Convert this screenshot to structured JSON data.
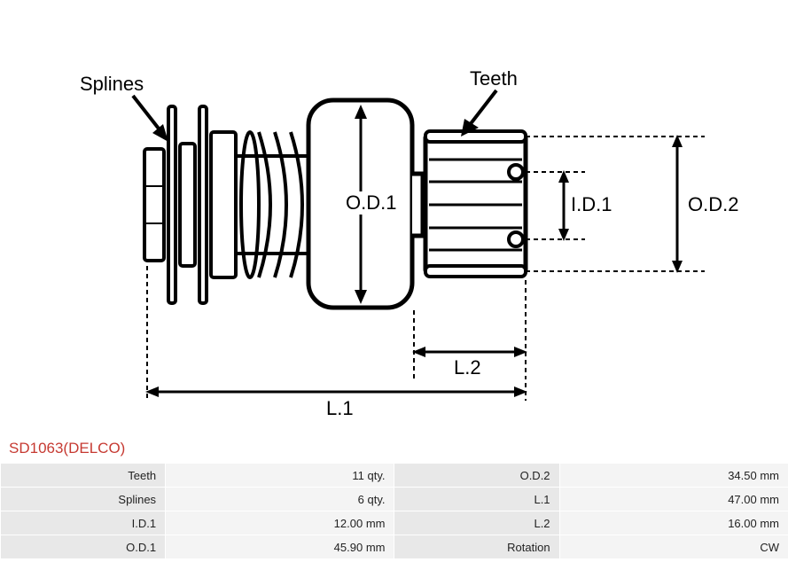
{
  "diagram": {
    "labels": {
      "splines": "Splines",
      "teeth": "Teeth",
      "od1": "O.D.1",
      "od2": "O.D.2",
      "id1": "I.D.1",
      "l1": "L.1",
      "l2": "L.2"
    },
    "style": {
      "stroke": "#000000",
      "stroke_width_main": 4,
      "stroke_width_thin": 2,
      "dash": "5,4",
      "label_fontsize": 22,
      "label_color": "#000000",
      "background": "#ffffff"
    }
  },
  "product": {
    "title": "SD1063(DELCO)",
    "title_color": "#c63a32"
  },
  "spec_table": {
    "header_bg": "#e8e8e8",
    "value_bg": "#f4f4f4",
    "rows": [
      {
        "k1": "Teeth",
        "v1": "11 qty.",
        "k2": "O.D.2",
        "v2": "34.50 mm"
      },
      {
        "k1": "Splines",
        "v1": "6 qty.",
        "k2": "L.1",
        "v2": "47.00 mm"
      },
      {
        "k1": "I.D.1",
        "v1": "12.00 mm",
        "k2": "L.2",
        "v2": "16.00 mm"
      },
      {
        "k1": "O.D.1",
        "v1": "45.90 mm",
        "k2": "Rotation",
        "v2": "CW"
      }
    ]
  }
}
